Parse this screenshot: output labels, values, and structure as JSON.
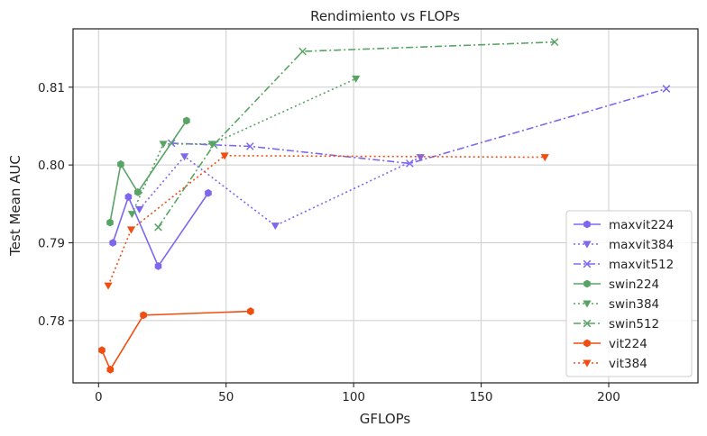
{
  "chart_data": {
    "type": "line",
    "title": "Rendimiento vs FLOPs",
    "xlabel": "GFLOPs",
    "ylabel": "Test Mean AUC",
    "xlim": [
      -10,
      235
    ],
    "ylim": [
      0.772,
      0.8175
    ],
    "xticks": [
      0,
      50,
      100,
      150,
      200
    ],
    "xtick_labels": [
      "0",
      "50",
      "100",
      "150",
      "200"
    ],
    "yticks": [
      0.78,
      0.79,
      0.8,
      0.81
    ],
    "ytick_labels": [
      "0.78",
      "0.79",
      "0.80",
      "0.81"
    ],
    "grid": true,
    "legend_position": "lower-right",
    "series": [
      {
        "name": "maxvit224",
        "color": "#7b68ee",
        "linestyle": "solid",
        "marker": "hexagon",
        "x": [
          5.6,
          11.7,
          23.4,
          43.0
        ],
        "y": [
          0.79,
          0.7959,
          0.787,
          0.7964
        ]
      },
      {
        "name": "maxvit384",
        "color": "#7b68ee",
        "linestyle": "dotted",
        "marker": "triangle-down",
        "x": [
          16.0,
          33.7,
          69.3,
          126.2
        ],
        "y": [
          0.7943,
          0.8011,
          0.7922,
          0.801
        ]
      },
      {
        "name": "maxvit512",
        "color": "#7b68ee",
        "linestyle": "dashdot",
        "marker": "x",
        "x": [
          28.6,
          59.4,
          122.0,
          222.6
        ],
        "y": [
          0.8028,
          0.8024,
          0.8002,
          0.8098
        ]
      },
      {
        "name": "swin224",
        "color": "#59a465",
        "linestyle": "solid",
        "marker": "hexagon",
        "x": [
          4.5,
          8.7,
          15.4,
          34.5
        ],
        "y": [
          0.7926,
          0.8001,
          0.7965,
          0.8057
        ]
      },
      {
        "name": "swin384",
        "color": "#59a465",
        "linestyle": "dotted",
        "marker": "triangle-down",
        "x": [
          13.1,
          25.4,
          44.5,
          100.9
        ],
        "y": [
          0.7937,
          0.8027,
          0.8027,
          0.8111
        ]
      },
      {
        "name": "swin512",
        "color": "#59a465",
        "linestyle": "dashdot",
        "marker": "x",
        "x": [
          23.4,
          45.2,
          80.0,
          178.8
        ],
        "y": [
          0.792,
          0.8026,
          0.8146,
          0.8158
        ]
      },
      {
        "name": "vit224",
        "color": "#f04d10",
        "linestyle": "solid",
        "marker": "hexagon",
        "x": [
          1.3,
          4.6,
          17.6,
          59.6
        ],
        "y": [
          0.7762,
          0.7737,
          0.7807,
          0.7812
        ]
      },
      {
        "name": "vit384",
        "color": "#f04d10",
        "linestyle": "dotted",
        "marker": "triangle-down",
        "x": [
          3.8,
          12.8,
          49.4,
          175.0
        ],
        "y": [
          0.7845,
          0.7917,
          0.8012,
          0.801
        ]
      }
    ]
  }
}
